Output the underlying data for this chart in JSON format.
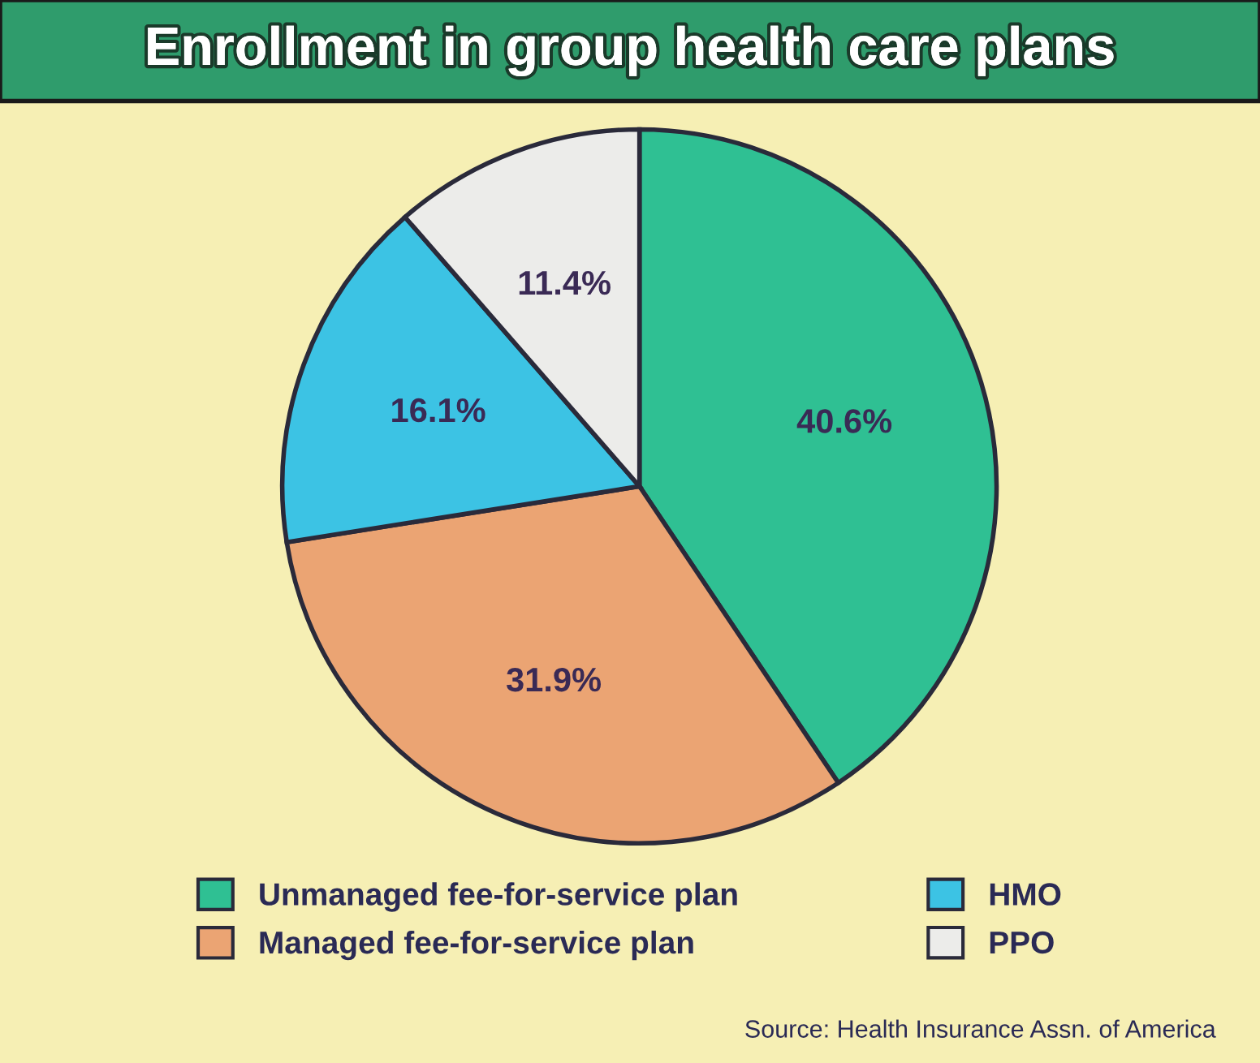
{
  "chart_data": {
    "type": "pie",
    "title": "Enrollment in group health care plans",
    "categories": [
      "Unmanaged fee-for-service plan",
      "Managed fee-for-service plan",
      "HMO",
      "PPO"
    ],
    "values": [
      40.6,
      31.9,
      16.1,
      11.4
    ],
    "colors": [
      "#2fc093",
      "#eba473",
      "#3cc3e4",
      "#ececea"
    ],
    "value_labels": [
      "40.6%",
      "31.9%",
      "16.1%",
      "11.4%"
    ],
    "legend": "bottom",
    "annotations": [
      "Source: Health Insurance Assn. of America"
    ]
  }
}
